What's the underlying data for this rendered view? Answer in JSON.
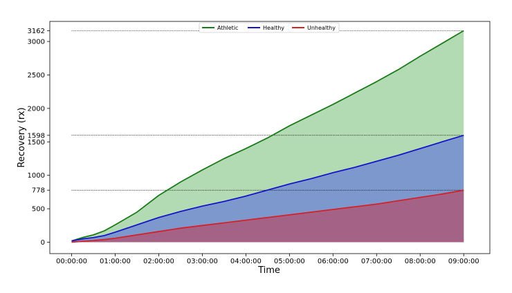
{
  "chart_data": {
    "type": "area",
    "xlabel": "Time",
    "ylabel": "Recovery (rx)",
    "x_tick_labels": [
      "00:00:00",
      "01:00:00",
      "02:00:00",
      "03:00:00",
      "04:00:00",
      "05:00:00",
      "06:00:00",
      "07:00:00",
      "08:00:00",
      "09:00:00"
    ],
    "x_ticks_hours": [
      0,
      1,
      2,
      3,
      4,
      5,
      6,
      7,
      8,
      9
    ],
    "y_ticks": [
      0,
      500,
      778,
      1000,
      1500,
      1598,
      2000,
      2500,
      3000,
      3162
    ],
    "xlim_hours": [
      -0.5,
      9.6
    ],
    "ylim": [
      -170,
      3300
    ],
    "reference_lines": [
      778,
      1598,
      3162
    ],
    "grid": false,
    "legend_position": "top-center",
    "series": [
      {
        "name": "Athletic",
        "color": "#1a7a1a",
        "fill": "#b3dbb3",
        "x_hours": [
          0,
          0.25,
          0.5,
          0.75,
          1,
          1.5,
          2,
          2.5,
          3,
          3.5,
          4,
          4.5,
          5,
          5.5,
          6,
          6.5,
          7,
          7.5,
          8,
          8.5,
          9
        ],
        "values": [
          20,
          70,
          110,
          170,
          260,
          450,
          700,
          900,
          1080,
          1250,
          1400,
          1560,
          1740,
          1900,
          2060,
          2230,
          2400,
          2580,
          2780,
          2970,
          3162
        ]
      },
      {
        "name": "Healthy",
        "color": "#1515c8",
        "fill": "#7d98cc",
        "x_hours": [
          0,
          0.25,
          0.5,
          0.75,
          1,
          1.5,
          2,
          2.5,
          3,
          3.5,
          4,
          4.5,
          5,
          5.5,
          6,
          6.5,
          7,
          7.5,
          8,
          8.5,
          9
        ],
        "values": [
          20,
          50,
          70,
          100,
          150,
          260,
          370,
          460,
          540,
          610,
          690,
          780,
          870,
          950,
          1040,
          1120,
          1210,
          1300,
          1400,
          1500,
          1598
        ]
      },
      {
        "name": "Unhealthy",
        "color": "#d62027",
        "fill": "#a46287",
        "x_hours": [
          0,
          0.25,
          0.5,
          0.75,
          1,
          1.5,
          2,
          2.5,
          3,
          3.5,
          4,
          4.5,
          5,
          5.5,
          6,
          6.5,
          7,
          7.5,
          8,
          8.5,
          9
        ],
        "values": [
          0,
          15,
          25,
          40,
          60,
          110,
          160,
          210,
          250,
          290,
          330,
          370,
          410,
          450,
          490,
          530,
          570,
          620,
          670,
          720,
          778
        ]
      }
    ]
  }
}
